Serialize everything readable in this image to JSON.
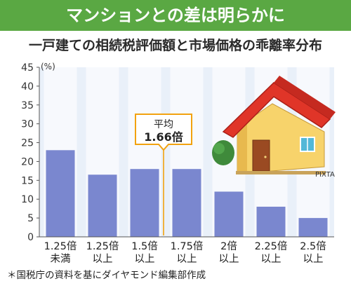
{
  "banner": {
    "title": "マンションとの差は明らかに"
  },
  "subtitle": "一戸建ての相続税評価額と市場価格の乖離率分布",
  "unit_label": "(%)",
  "callout": {
    "line1": "平均",
    "line2": "1.66倍"
  },
  "illustration": {
    "name": "house-illustration",
    "credit": "PIXTA"
  },
  "footnote": "＊国税庁の資料を基にダイヤモンド編集部作成",
  "colors": {
    "banner": "#5aa843",
    "plot_bg": "#e9f0f9",
    "bar": "#7a87cf",
    "average_line": "#f2a20f",
    "roof": "#e03528",
    "wall": "#f7d36b",
    "door": "#9a4a22"
  },
  "chart_data": {
    "type": "bar",
    "title": "一戸建ての相続税評価額と市場価格の乖離率分布",
    "ylabel": "(%)",
    "ylim": [
      0,
      45
    ],
    "yticks": [
      0,
      5,
      10,
      15,
      20,
      25,
      30,
      35,
      40,
      45
    ],
    "grid": false,
    "categories": [
      [
        "1.25倍",
        "未満"
      ],
      [
        "1.25倍",
        "以上"
      ],
      [
        "1.5倍",
        "以上"
      ],
      [
        "1.75倍",
        "以上"
      ],
      [
        "2倍",
        "以上"
      ],
      [
        "2.25倍",
        "以上"
      ],
      [
        "2.5倍",
        "以上"
      ]
    ],
    "values": [
      23,
      16.5,
      18,
      18,
      12,
      8,
      5
    ],
    "annotation": {
      "text": [
        "平均",
        "1.66倍"
      ],
      "x": 1.66
    }
  }
}
